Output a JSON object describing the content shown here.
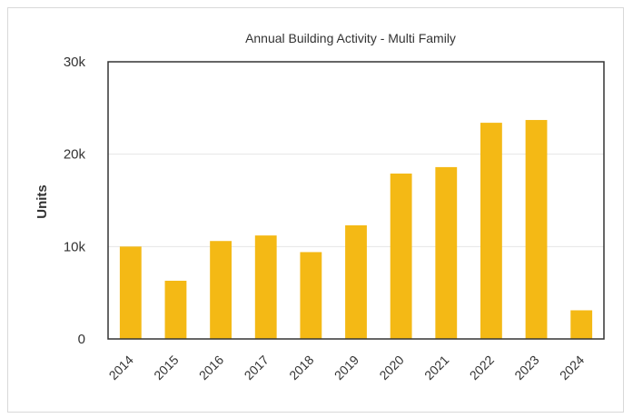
{
  "chart_data": {
    "type": "bar",
    "title": "Annual Building Activity - Multi Family",
    "xlabel": "",
    "ylabel": "Units",
    "categories": [
      "2014",
      "2015",
      "2016",
      "2017",
      "2018",
      "2019",
      "2020",
      "2021",
      "2022",
      "2023",
      "2024"
    ],
    "values": [
      10000,
      6300,
      10600,
      11200,
      9400,
      12300,
      17900,
      18600,
      23400,
      23700,
      3100
    ],
    "ylim": [
      0,
      30000
    ],
    "yticks": [
      0,
      10000,
      20000,
      30000
    ],
    "ytick_labels": [
      "0",
      "10k",
      "20k",
      "30k"
    ],
    "grid": true,
    "legend": "none",
    "bar_color": "#f4b915",
    "grid_color": "#e6e6e6",
    "axis_color": "#333333"
  }
}
